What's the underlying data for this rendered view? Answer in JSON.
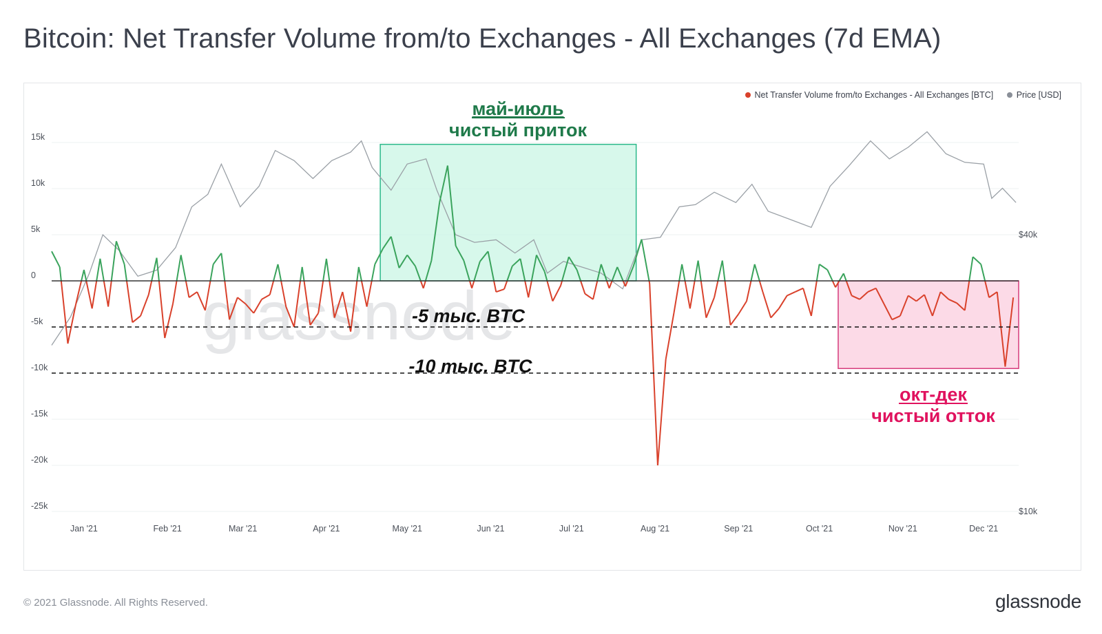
{
  "header": {
    "title": "Bitcoin: Net Transfer Volume from/to Exchanges - All Exchanges (7d EMA)"
  },
  "footer": {
    "copyright": "© 2021 Glassnode. All Rights Reserved.",
    "logo": "glassnode"
  },
  "watermark": "glassnode",
  "colors": {
    "positive": "#3aa35c",
    "negative": "#d9412b",
    "price": "#9aa0a6",
    "zero_line": "#333333",
    "inflow_box_fill": "#c9f5e4",
    "inflow_box_stroke": "#2bb98a",
    "outflow_box_fill": "#fbd3e3",
    "outflow_box_stroke": "#d63a7a",
    "inflow_text": "#1f7a4a",
    "outflow_text": "#e0125e"
  },
  "legend": [
    {
      "label": "Net Transfer Volume from/to Exchanges - All Exchanges [BTC]",
      "color": "#d9412b"
    },
    {
      "label": "Price [USD]",
      "color": "#8a8f98"
    }
  ],
  "annotations": {
    "inflow_title": "май-июль",
    "inflow_subtitle": "чистый приток",
    "outflow_title": "окт-дек",
    "outflow_subtitle": "чистый отток",
    "line_5k": "-5 тыс. BTC",
    "line_10k": "-10 тыс. BTC"
  },
  "chart_data": {
    "type": "line",
    "title": "Bitcoin: Net Transfer Volume from/to Exchanges - All Exchanges (7d EMA)",
    "x_range": [
      "2020-12-20",
      "2021-12-14"
    ],
    "x_ticks": [
      "Jan '21",
      "Feb '21",
      "Mar '21",
      "Apr '21",
      "May '21",
      "Jun '21",
      "Jul '21",
      "Aug '21",
      "Sep '21",
      "Oct '21",
      "Nov '21",
      "Dec '21"
    ],
    "y_left": {
      "ticks": [
        "15k",
        "10k",
        "5k",
        "0",
        "-5k",
        "-10k",
        "-15k",
        "-20k",
        "-25k"
      ],
      "range": [
        -25000,
        15000
      ]
    },
    "y_right": {
      "ticks": [
        "$40k",
        "$10k"
      ],
      "scale": "log",
      "range": [
        10000,
        90000
      ]
    },
    "reference_lines": [
      -5000,
      -10000
    ],
    "highlight_regions": [
      {
        "name": "май-июль чистый приток",
        "from": "2021-04-21",
        "to": "2021-07-25",
        "y_from": 0,
        "y_to": 14800
      },
      {
        "name": "окт-дек чистый отток",
        "from": "2021-10-08",
        "to": "2021-12-14",
        "y_from": -9500,
        "y_to": 0
      }
    ],
    "series": [
      {
        "name": "Net Transfer Volume from/to Exchanges - All Exchanges [BTC]",
        "x": [
          "2020-12-20",
          "2020-12-23",
          "2020-12-26",
          "2020-12-29",
          "2021-01-01",
          "2021-01-04",
          "2021-01-07",
          "2021-01-10",
          "2021-01-13",
          "2021-01-16",
          "2021-01-19",
          "2021-01-22",
          "2021-01-25",
          "2021-01-28",
          "2021-01-31",
          "2021-02-03",
          "2021-02-06",
          "2021-02-09",
          "2021-02-12",
          "2021-02-15",
          "2021-02-18",
          "2021-02-21",
          "2021-02-24",
          "2021-02-27",
          "2021-03-02",
          "2021-03-05",
          "2021-03-08",
          "2021-03-11",
          "2021-03-14",
          "2021-03-17",
          "2021-03-20",
          "2021-03-23",
          "2021-03-26",
          "2021-03-29",
          "2021-04-01",
          "2021-04-04",
          "2021-04-07",
          "2021-04-10",
          "2021-04-13",
          "2021-04-16",
          "2021-04-19",
          "2021-04-22",
          "2021-04-25",
          "2021-04-28",
          "2021-05-01",
          "2021-05-04",
          "2021-05-07",
          "2021-05-10",
          "2021-05-13",
          "2021-05-16",
          "2021-05-19",
          "2021-05-22",
          "2021-05-25",
          "2021-05-28",
          "2021-05-31",
          "2021-06-03",
          "2021-06-06",
          "2021-06-09",
          "2021-06-12",
          "2021-06-15",
          "2021-06-18",
          "2021-06-21",
          "2021-06-24",
          "2021-06-27",
          "2021-06-30",
          "2021-07-03",
          "2021-07-06",
          "2021-07-09",
          "2021-07-12",
          "2021-07-15",
          "2021-07-18",
          "2021-07-21",
          "2021-07-24",
          "2021-07-27",
          "2021-07-30",
          "2021-08-02",
          "2021-08-05",
          "2021-08-08",
          "2021-08-11",
          "2021-08-14",
          "2021-08-17",
          "2021-08-20",
          "2021-08-23",
          "2021-08-26",
          "2021-08-29",
          "2021-09-01",
          "2021-09-04",
          "2021-09-07",
          "2021-09-10",
          "2021-09-13",
          "2021-09-16",
          "2021-09-19",
          "2021-09-22",
          "2021-09-25",
          "2021-09-28",
          "2021-10-01",
          "2021-10-04",
          "2021-10-07",
          "2021-10-10",
          "2021-10-13",
          "2021-10-16",
          "2021-10-19",
          "2021-10-22",
          "2021-10-25",
          "2021-10-28",
          "2021-10-31",
          "2021-11-03",
          "2021-11-06",
          "2021-11-09",
          "2021-11-12",
          "2021-11-15",
          "2021-11-18",
          "2021-11-21",
          "2021-11-24",
          "2021-11-27",
          "2021-11-30",
          "2021-12-03",
          "2021-12-06",
          "2021-12-09",
          "2021-12-12"
        ],
        "values": [
          3200,
          1500,
          -6800,
          -2500,
          1200,
          -3000,
          2400,
          -2800,
          4300,
          1800,
          -4500,
          -3800,
          -1500,
          2500,
          -6200,
          -2500,
          2800,
          -1800,
          -1200,
          -3200,
          1800,
          3000,
          -4200,
          -1800,
          -2500,
          -3500,
          -2000,
          -1500,
          1800,
          -2800,
          -5000,
          1500,
          -4800,
          -3500,
          2400,
          -4000,
          -1200,
          -5500,
          1500,
          -2800,
          1800,
          3500,
          4800,
          1400,
          2800,
          1600,
          -800,
          2200,
          8500,
          12500,
          3800,
          2200,
          -800,
          2100,
          3200,
          -1200,
          -900,
          1600,
          2400,
          -1800,
          2800,
          1000,
          -2200,
          -500,
          2600,
          1200,
          -1400,
          -2000,
          1800,
          -800,
          1500,
          -600,
          1600,
          4500,
          -300,
          -20000,
          -8500,
          -3500,
          1800,
          -3000,
          2200,
          -4000,
          -1800,
          2200,
          -4800,
          -3600,
          -2200,
          1800,
          -1200,
          -4000,
          -3000,
          -1600,
          -1200,
          -800,
          -3800,
          1800,
          1200,
          -700,
          800,
          -1600,
          -2000,
          -1200,
          -800,
          -2500,
          -4200,
          -3800,
          -1600,
          -2200,
          -1500,
          -3800,
          -1200,
          -2000,
          -2400,
          -3200,
          2600,
          1800,
          -1800,
          -1200,
          -9300,
          -1800
        ]
      },
      {
        "name": "Price [USD]",
        "x": [
          "2020-12-20",
          "2020-12-27",
          "2021-01-03",
          "2021-01-08",
          "2021-01-14",
          "2021-01-21",
          "2021-01-28",
          "2021-02-04",
          "2021-02-10",
          "2021-02-16",
          "2021-02-21",
          "2021-02-28",
          "2021-03-07",
          "2021-03-13",
          "2021-03-20",
          "2021-03-27",
          "2021-04-03",
          "2021-04-10",
          "2021-04-14",
          "2021-04-18",
          "2021-04-25",
          "2021-05-01",
          "2021-05-08",
          "2021-05-12",
          "2021-05-19",
          "2021-05-26",
          "2021-06-03",
          "2021-06-10",
          "2021-06-17",
          "2021-06-22",
          "2021-06-28",
          "2021-07-05",
          "2021-07-12",
          "2021-07-20",
          "2021-07-27",
          "2021-08-03",
          "2021-08-10",
          "2021-08-16",
          "2021-08-23",
          "2021-08-31",
          "2021-09-06",
          "2021-09-12",
          "2021-09-21",
          "2021-09-28",
          "2021-10-05",
          "2021-10-12",
          "2021-10-20",
          "2021-10-27",
          "2021-11-03",
          "2021-11-10",
          "2021-11-17",
          "2021-11-24",
          "2021-12-01",
          "2021-12-04",
          "2021-12-08",
          "2021-12-13"
        ],
        "values": [
          23000,
          26500,
          33000,
          40000,
          37000,
          32500,
          33500,
          37500,
          46000,
          49000,
          57000,
          46000,
          51000,
          61000,
          58000,
          53000,
          58000,
          60500,
          64000,
          56000,
          50000,
          57000,
          58500,
          50000,
          40000,
          38500,
          39000,
          36500,
          39000,
          33000,
          35000,
          34000,
          33000,
          30500,
          39000,
          39500,
          46000,
          46500,
          49500,
          47000,
          51500,
          45000,
          43000,
          41500,
          51000,
          56500,
          64000,
          58500,
          62000,
          67000,
          60000,
          57500,
          57000,
          48000,
          50500,
          47000
        ]
      }
    ]
  }
}
